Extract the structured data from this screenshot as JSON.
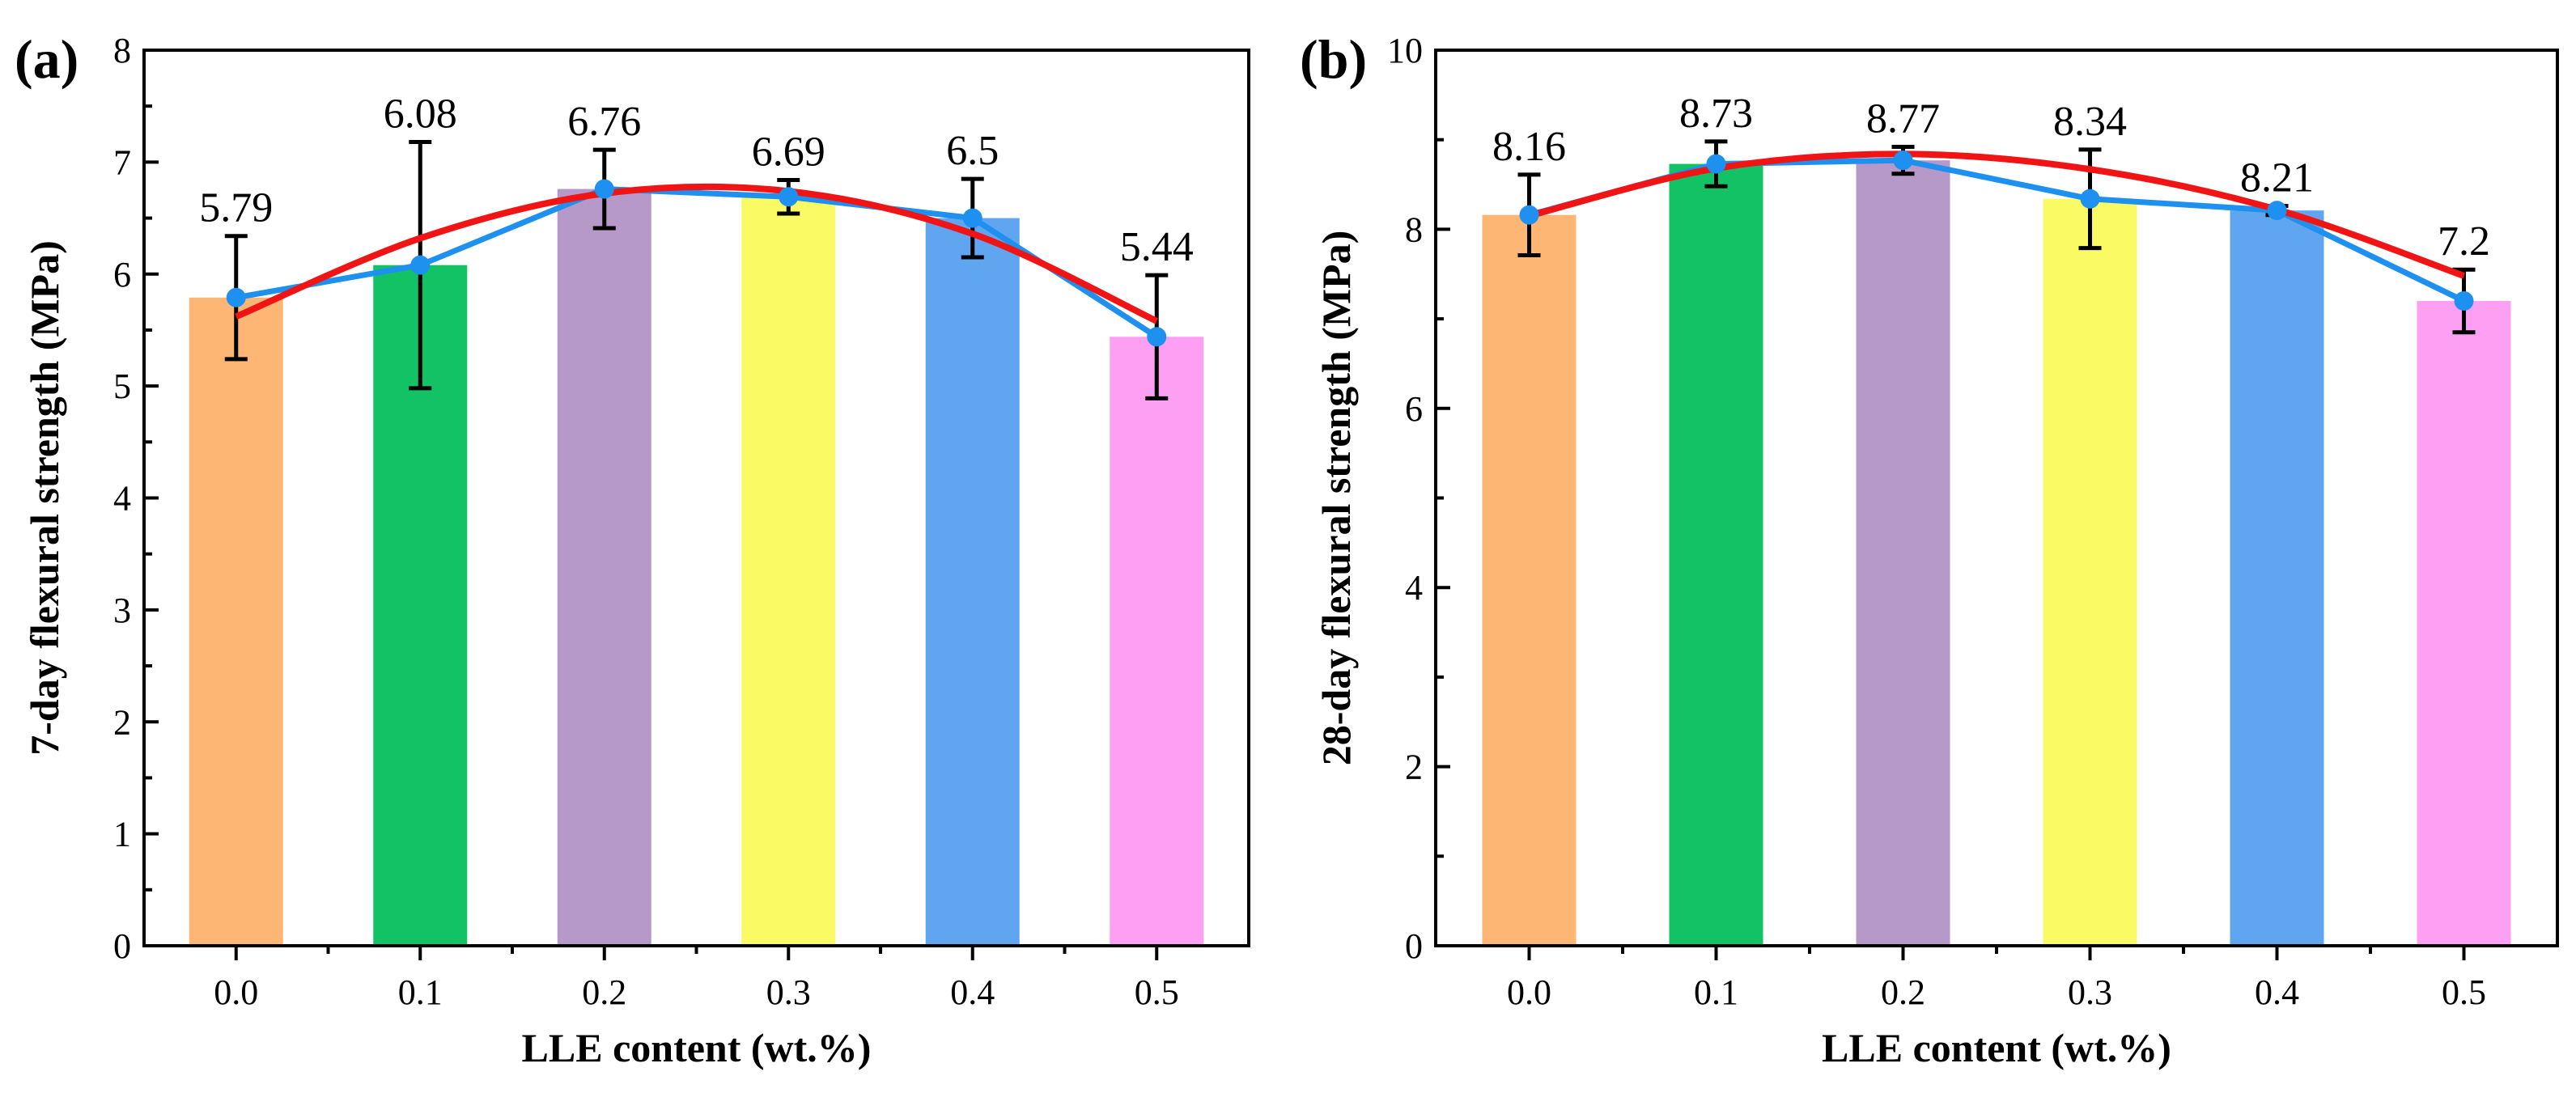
{
  "chart_data": [
    {
      "type": "bar",
      "panel": "(a)",
      "categories": [
        "0.0",
        "0.1",
        "0.2",
        "0.3",
        "0.4",
        "0.5"
      ],
      "values": [
        5.79,
        6.08,
        6.76,
        6.69,
        6.5,
        5.44
      ],
      "value_labels": [
        "5.79",
        "6.08",
        "6.76",
        "6.69",
        "6.5",
        "5.44"
      ],
      "errors": [
        0.55,
        1.1,
        0.35,
        0.15,
        0.35,
        0.55
      ],
      "fit": [
        5.62,
        6.32,
        6.72,
        6.74,
        6.36,
        5.58
      ],
      "colors": [
        "#FDB673",
        "#12C264",
        "#B699C8",
        "#FAFA64",
        "#60A5F0",
        "#FDA0F3"
      ],
      "xlabel": "LLE content (wt.%)",
      "ylabel": "7-day flexural strength (MPa)",
      "ylim": [
        0,
        8
      ],
      "yticks": [
        "0",
        "1",
        "2",
        "3",
        "4",
        "5",
        "6",
        "7",
        "8"
      ],
      "line_color": "#1E90F0",
      "fit_color": "#F01414",
      "grid": false
    },
    {
      "type": "bar",
      "panel": "(b)",
      "categories": [
        "0.0",
        "0.1",
        "0.2",
        "0.3",
        "0.4",
        "0.5"
      ],
      "values": [
        8.16,
        8.73,
        8.77,
        8.34,
        8.21,
        7.2
      ],
      "value_labels": [
        "8.16",
        "8.73",
        "8.77",
        "8.34",
        "8.21",
        "7.2"
      ],
      "errors": [
        0.45,
        0.25,
        0.15,
        0.55,
        0.05,
        0.35
      ],
      "fit": [
        8.15,
        8.68,
        8.84,
        8.67,
        8.22,
        7.48
      ],
      "colors": [
        "#FDB673",
        "#12C264",
        "#B699C8",
        "#FAFA64",
        "#60A5F0",
        "#FDA0F3"
      ],
      "xlabel": "LLE content (wt.%)",
      "ylabel": "28-day flexural strength (MPa)",
      "ylim": [
        0,
        10
      ],
      "yticks": [
        "0",
        "2",
        "4",
        "6",
        "8",
        "10"
      ],
      "line_color": "#1E90F0",
      "fit_color": "#F01414",
      "grid": false
    }
  ]
}
